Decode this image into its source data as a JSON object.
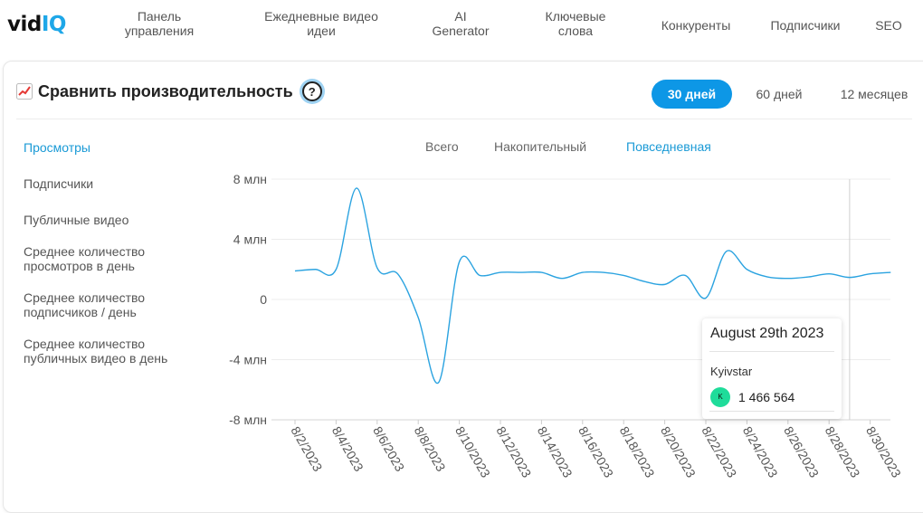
{
  "nav": {
    "logo_main": "vid",
    "logo_accent": "IQ",
    "items": [
      {
        "label": "Панель\nуправления"
      },
      {
        "label": "Ежедневные видео\nидеи"
      },
      {
        "label": "AI\nGenerator"
      },
      {
        "label": "Ключевые\nслова"
      },
      {
        "label": "Конкуренты"
      },
      {
        "label": "Подписчики"
      },
      {
        "label": "SEO"
      }
    ],
    "active_index": 4
  },
  "card": {
    "title": "Сравнить производительность",
    "title_icon": "chart-increasing-icon",
    "help_label": "?",
    "ranges": [
      "30 дней",
      "60 дней",
      "12 месяцев"
    ],
    "active_range": 0
  },
  "metrics": [
    {
      "label": "Просмотры"
    },
    {
      "label": "Подписчики"
    },
    {
      "label": "Публичные видео"
    },
    {
      "label": "Среднее количество\nпросмотров в день"
    },
    {
      "label": "Среднее количество\nподписчиков / день"
    },
    {
      "label": "Среднее количество\nпубличных видео в день"
    }
  ],
  "active_metric": 0,
  "modes": [
    "Всего",
    "Накопительный",
    "Повседневная"
  ],
  "active_mode": 2,
  "colors": {
    "accent": "#1a9ad6",
    "line": "#2ba3e0",
    "avatar": "#1fdc9a"
  },
  "tooltip": {
    "date": "August 29th 2023",
    "channel": "Kyivstar",
    "avatar_letter": "K",
    "value": "1 466 564"
  },
  "chart_data": {
    "type": "line",
    "y_ticks": [
      "8 млн",
      "4 млн",
      "0",
      "-4 млн",
      "-8 млн"
    ],
    "ylim": [
      -8000000,
      8000000
    ],
    "x_ticks": [
      "8/2/2023",
      "8/4/2023",
      "8/6/2023",
      "8/8/2023",
      "8/10/2023",
      "8/12/2023",
      "8/14/2023",
      "8/16/2023",
      "8/18/2023",
      "8/20/2023",
      "8/22/2023",
      "8/24/2023",
      "8/26/2023",
      "8/28/2023",
      "8/30/2023"
    ],
    "hover_x": "8/29/2023",
    "series": [
      {
        "points": [
          [
            "8/2/2023",
            1900000
          ],
          [
            "8/3/2023",
            2000000
          ],
          [
            "8/4/2023",
            2000000
          ],
          [
            "8/5/2023",
            7400000
          ],
          [
            "8/6/2023",
            2100000
          ],
          [
            "8/7/2023",
            1700000
          ],
          [
            "8/8/2023",
            -1200000
          ],
          [
            "8/9/2023",
            -5500000
          ],
          [
            "8/10/2023",
            2500000
          ],
          [
            "8/11/2023",
            1600000
          ],
          [
            "8/12/2023",
            1800000
          ],
          [
            "8/13/2023",
            1800000
          ],
          [
            "8/14/2023",
            1800000
          ],
          [
            "8/15/2023",
            1400000
          ],
          [
            "8/16/2023",
            1800000
          ],
          [
            "8/17/2023",
            1800000
          ],
          [
            "8/18/2023",
            1600000
          ],
          [
            "8/19/2023",
            1200000
          ],
          [
            "8/20/2023",
            1000000
          ],
          [
            "8/21/2023",
            1600000
          ],
          [
            "8/22/2023",
            100000
          ],
          [
            "8/23/2023",
            3200000
          ],
          [
            "8/24/2023",
            2000000
          ],
          [
            "8/25/2023",
            1500000
          ],
          [
            "8/26/2023",
            1400000
          ],
          [
            "8/27/2023",
            1500000
          ],
          [
            "8/28/2023",
            1700000
          ],
          [
            "8/29/2023",
            1466564
          ],
          [
            "8/30/2023",
            1700000
          ],
          [
            "8/31/2023",
            1800000
          ]
        ]
      }
    ]
  }
}
